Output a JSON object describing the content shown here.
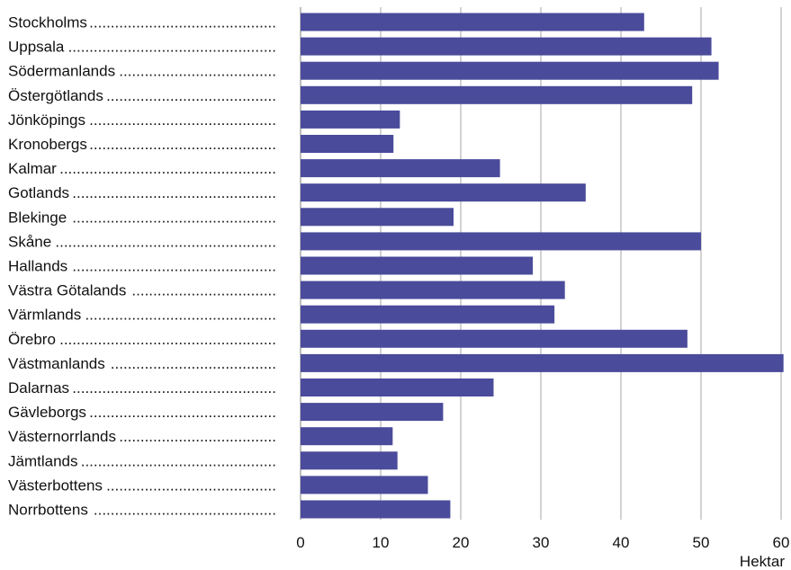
{
  "chart_data": {
    "type": "bar",
    "orientation": "horizontal",
    "categories": [
      "Stockholms",
      "Uppsala",
      "Södermanlands",
      "Östergötlands",
      "Jönköpings",
      "Kronobergs",
      "Kalmar",
      "Gotlands",
      "Blekinge",
      "Skåne",
      "Hallands",
      "Västra Götalands",
      "Värmlands",
      "Örebro",
      "Västmanlands",
      "Dalarnas",
      "Gävleborgs",
      "Västernorrlands",
      "Jämtlands",
      "Västerbottens",
      "Norrbottens"
    ],
    "values": [
      42.9,
      51.3,
      52.2,
      48.9,
      12.4,
      11.6,
      24.9,
      35.6,
      19.1,
      50.0,
      29.0,
      33.0,
      31.7,
      48.3,
      60.3,
      24.1,
      17.8,
      11.5,
      12.1,
      15.9,
      18.7
    ],
    "xlim": [
      0,
      60
    ],
    "xticks": [
      0,
      10,
      20,
      30,
      40,
      50,
      60
    ],
    "xlabel": "Hektar",
    "title": "",
    "grid": "vertical",
    "colors": {
      "bar": "#4a4b9b",
      "grid": "#a6a6a6",
      "axis": "#7f7f7f"
    }
  }
}
